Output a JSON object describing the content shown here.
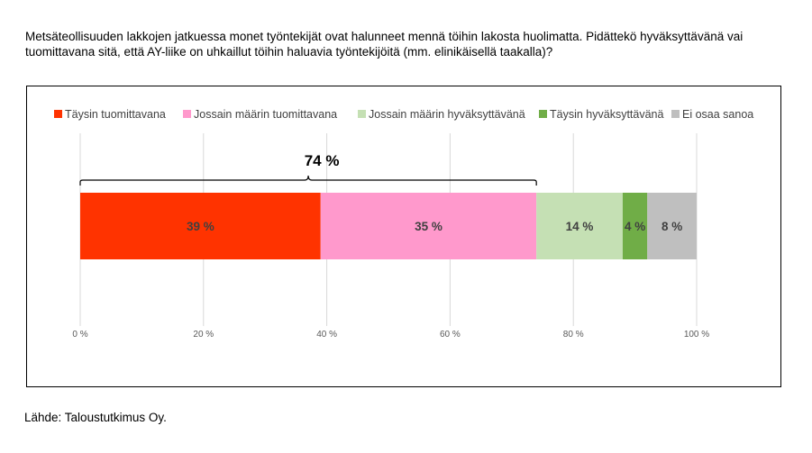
{
  "question": "Metsäteollisuuden lakkojen jatkuessa monet työntekijät ovat halunneet mennä töihin lakosta huolimatta. Pidättekö hyväksyttävänä vai tuomittavana sitä, että AY-liike on uhkaillut töihin haluavia työntekijöitä (mm. elinikäisellä taakalla)?",
  "source": "Lähde: Taloustutkimus Oy.",
  "chart_data": {
    "type": "bar",
    "orientation": "horizontal",
    "stacked": true,
    "xlim": [
      0,
      100
    ],
    "x_ticks": [
      "0 %",
      "20 %",
      "40 %",
      "60 %",
      "80 %",
      "100 %"
    ],
    "x_tick_values": [
      0,
      20,
      40,
      60,
      80,
      100
    ],
    "grid": "vertical",
    "legend_position": "top",
    "series": [
      {
        "name": "Täysin tuomittavana",
        "value": 39,
        "label": "39 %",
        "color": "#FF3300",
        "label_color": "#404040"
      },
      {
        "name": "Jossain määrin tuomittavana",
        "value": 35,
        "label": "35 %",
        "color": "#FF99CC",
        "label_color": "#404040"
      },
      {
        "name": "Jossain määrin hyväksyttävänä",
        "value": 14,
        "label": "14 %",
        "color": "#C5E0B4",
        "label_color": "#404040"
      },
      {
        "name": "Täysin hyväksyttävänä",
        "value": 4,
        "label": "4 %",
        "color": "#70AD47",
        "label_color": "#404040"
      },
      {
        "name": "Ei osaa sanoa",
        "value": 8,
        "label": "8 %",
        "color": "#BFBFBF",
        "label_color": "#404040"
      }
    ],
    "annotation": {
      "text": "74 %",
      "from": 0,
      "to": 74
    }
  }
}
